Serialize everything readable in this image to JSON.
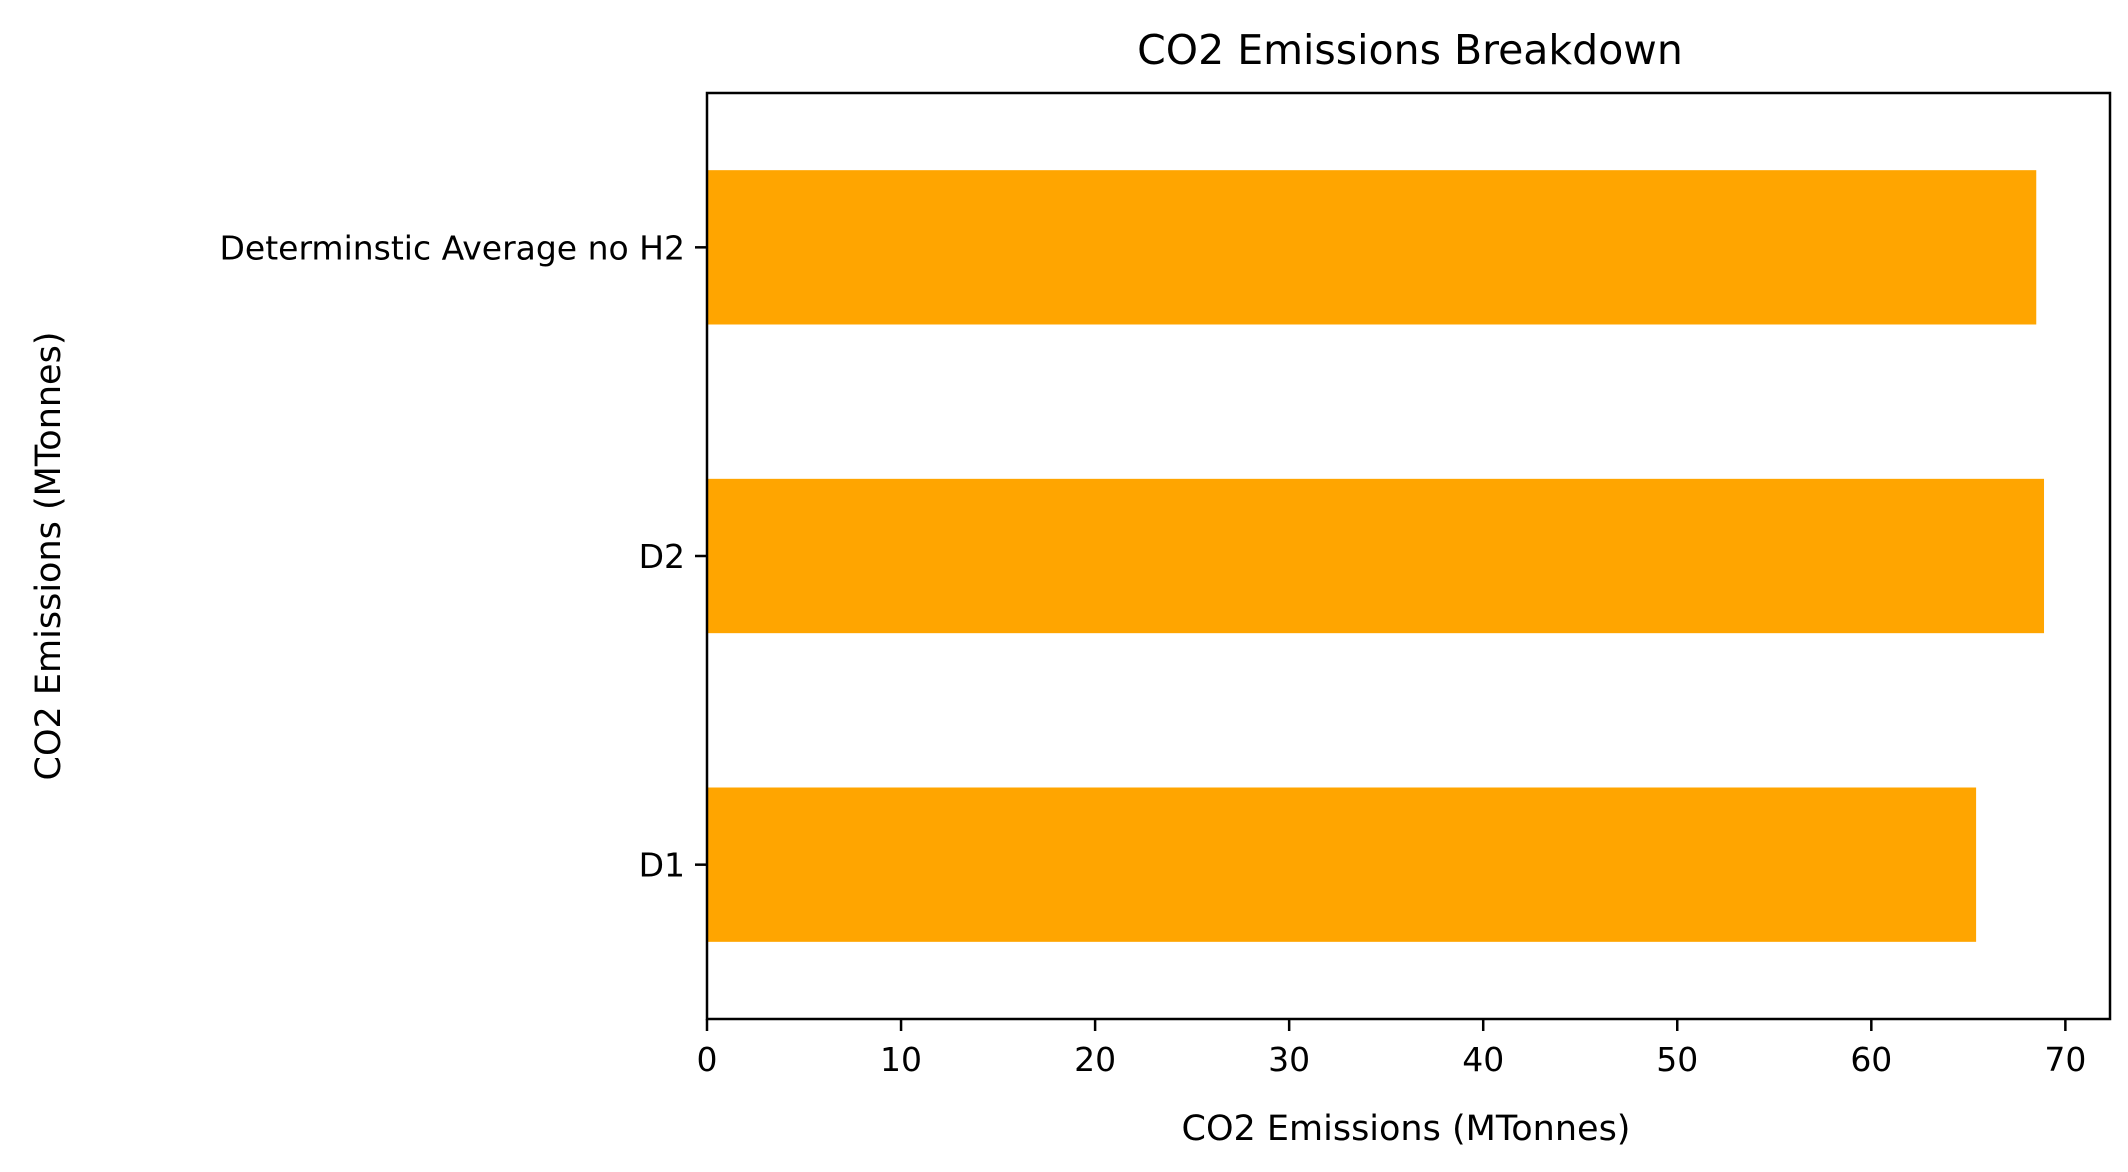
{
  "chart_data": {
    "type": "bar",
    "orientation": "horizontal",
    "title": "CO2 Emissions Breakdown",
    "xlabel": "CO2 Emissions (MTonnes)",
    "ylabel": "CO2 Emissions (MTonnes)",
    "categories": [
      "D1",
      "D2",
      "Determinstic Average no H2"
    ],
    "values": [
      65.4,
      68.9,
      68.5
    ],
    "xlim": [
      0,
      72.3
    ],
    "xticks": [
      "0",
      "10",
      "20",
      "30",
      "40",
      "50",
      "60",
      "70"
    ],
    "grid": false,
    "legend": "none",
    "bar_color": "#FFA500"
  }
}
